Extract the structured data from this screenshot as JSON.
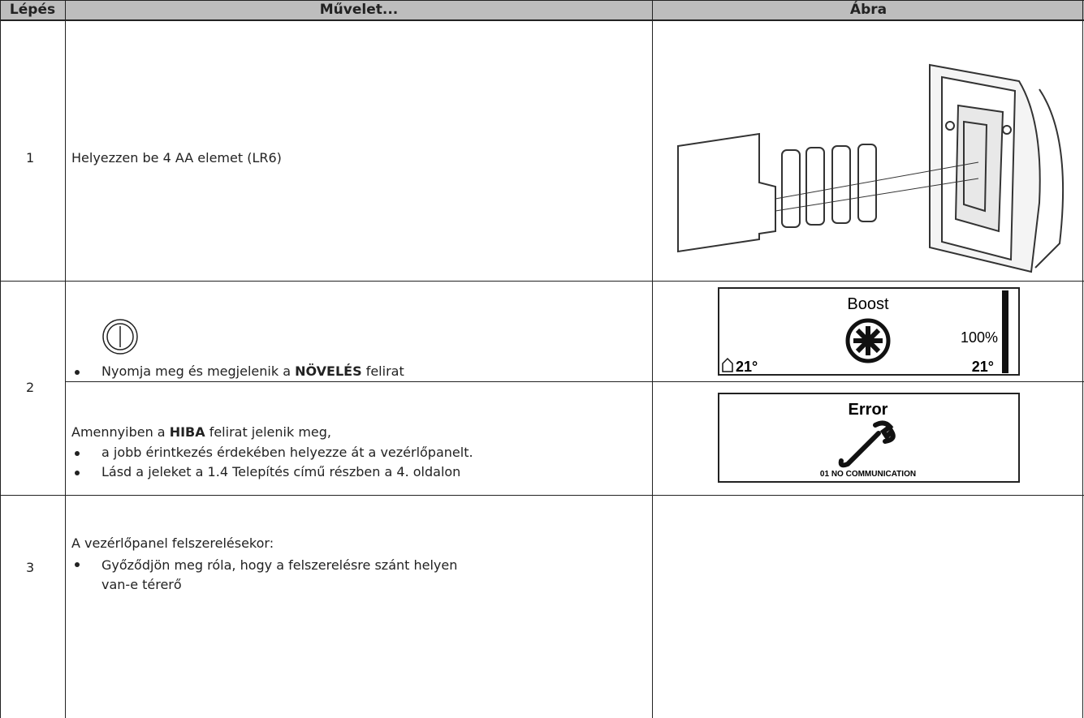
{
  "header": {
    "step": "Lépés",
    "action": "Művelet...",
    "figure": "Ábra"
  },
  "rows": [
    {
      "step": "1",
      "action": "Helyezzen be 4 AA elemet (LR6)"
    },
    {
      "step": "2",
      "parts": [
        {
          "bullet": [
            "Nyomja meg és megjelenik a ",
            "NÖVELÉS",
            " felirat"
          ],
          "display": {
            "title": "Boost",
            "level": "100%",
            "indoor": "21°",
            "outdoor": "21°"
          }
        },
        {
          "intro": [
            "Amennyiben a ",
            "HIBA",
            " felirat jelenik meg,"
          ],
          "bullets": [
            "a jobb érintkezés érdekében helyezze át a vezérlőpanelt.",
            "Lásd a jeleket a 1.4 Telepítés című részben a 4. oldalon"
          ],
          "display": {
            "title": "Error",
            "message": "01 NO COMMUNICATION"
          }
        }
      ]
    },
    {
      "step": "3",
      "intro": "A vezérlőpanel felszerelésekor:",
      "bullets": [
        "Győződjön meg róla, hogy a felszerelésre szánt helyen van-e térerő"
      ]
    }
  ]
}
